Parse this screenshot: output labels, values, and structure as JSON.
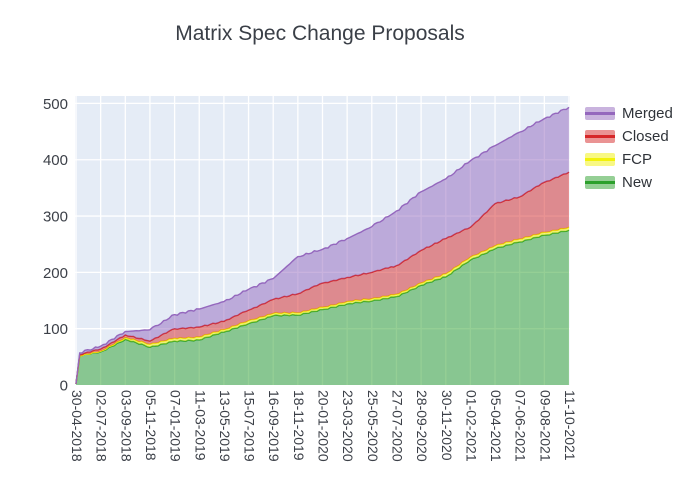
{
  "title": "Matrix Spec Change Proposals",
  "chart_data": {
    "type": "area",
    "stacked": true,
    "title": "Matrix Spec Change Proposals",
    "xlabel": "",
    "ylabel": "",
    "ylim": [
      0,
      500
    ],
    "yticks": [
      0,
      100,
      200,
      300,
      400,
      500
    ],
    "grid": true,
    "plot_bg": "#e5ecf6",
    "grid_color": "#ffffff",
    "tick_text_color": "#3c4048",
    "x_tick_labels": [
      "30-04-2018",
      "02-07-2018",
      "03-09-2018",
      "05-11-2018",
      "07-01-2019",
      "11-03-2019",
      "13-05-2019",
      "15-07-2019",
      "16-09-2019",
      "18-11-2019",
      "20-01-2020",
      "23-03-2020",
      "25-05-2020",
      "27-07-2020",
      "28-09-2020",
      "30-11-2020",
      "01-02-2021",
      "05-04-2021",
      "07-06-2021",
      "09-08-2021",
      "11-10-2021"
    ],
    "positions": [
      0,
      0.15,
      1,
      2,
      3,
      4,
      5,
      6,
      7,
      8,
      9,
      10,
      11,
      12,
      13,
      14,
      15,
      16,
      17,
      18,
      19,
      20
    ],
    "series": [
      {
        "name": "New",
        "color": "#2ca02c",
        "values": [
          2,
          52,
          59,
          81,
          67,
          78,
          80,
          94,
          109,
          123,
          124,
          134,
          144,
          149,
          157,
          177,
          192,
          222,
          242,
          254,
          266,
          275
        ]
      },
      {
        "name": "FCP",
        "color": "#f2f20a",
        "values": [
          0,
          0,
          1,
          3,
          5,
          5,
          5,
          4,
          5,
          4,
          4,
          4,
          4,
          4,
          4,
          4,
          5,
          5,
          5,
          5,
          5,
          5
        ]
      },
      {
        "name": "Closed",
        "color": "#d62728",
        "values": [
          0,
          2,
          4,
          5,
          6,
          17,
          18,
          15,
          19,
          25,
          34,
          43,
          43,
          47,
          51,
          58,
          63,
          53,
          75,
          75,
          89,
          98
        ]
      },
      {
        "name": "Merged",
        "color": "#9467bd",
        "values": [
          0,
          3,
          5,
          6,
          20,
          25,
          32,
          35,
          37,
          37,
          66,
          60,
          69,
          81,
          97,
          104,
          106,
          118,
          103,
          115,
          113,
          115
        ]
      }
    ],
    "legend": {
      "position": "right",
      "entries": [
        {
          "label": "Merged",
          "color": "#9467bd"
        },
        {
          "label": "Closed",
          "color": "#d62728"
        },
        {
          "label": "FCP",
          "color": "#f2f20a"
        },
        {
          "label": "New",
          "color": "#2ca02c"
        }
      ]
    }
  }
}
